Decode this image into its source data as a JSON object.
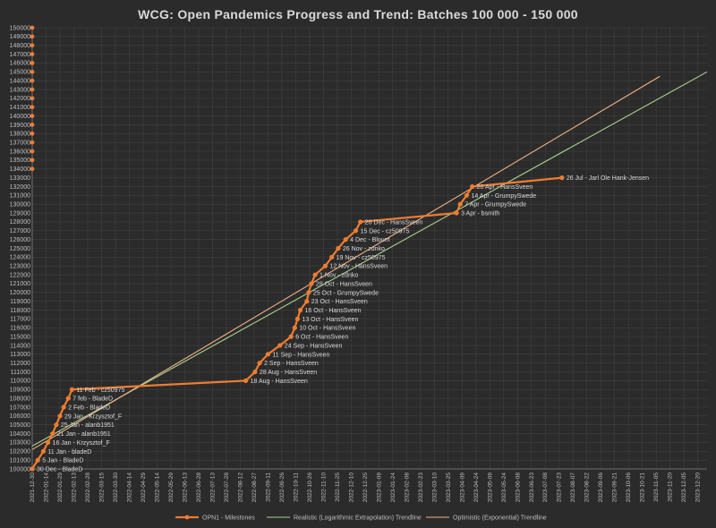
{
  "chart_data": {
    "type": "line",
    "title": "WCG: Open Pandemics Progress and Trend: Batches 100 000 - 150 000",
    "xlabel": "",
    "ylabel": "",
    "ylim": [
      100000,
      150000
    ],
    "y_ticks": [
      100000,
      101000,
      102000,
      103000,
      104000,
      105000,
      106000,
      107000,
      108000,
      109000,
      110000,
      111000,
      112000,
      113000,
      114000,
      115000,
      116000,
      117000,
      118000,
      119000,
      120000,
      121000,
      122000,
      123000,
      124000,
      125000,
      126000,
      127000,
      128000,
      129000,
      130000,
      131000,
      132000,
      133000,
      134000,
      135000,
      136000,
      137000,
      138000,
      139000,
      140000,
      141000,
      142000,
      143000,
      144000,
      145000,
      146000,
      147000,
      148000,
      149000,
      150000
    ],
    "x_ticks": [
      "2021-12-30",
      "2022-01-14",
      "2022-01-29",
      "2022-02-13",
      "2022-02-28",
      "2022-03-15",
      "2022-03-30",
      "2022-04-14",
      "2022-04-29",
      "2022-05-14",
      "2022-05-29",
      "2022-06-13",
      "2022-06-28",
      "2022-07-13",
      "2022-07-28",
      "2022-08-12",
      "2022-08-27",
      "2022-09-11",
      "2022-09-26",
      "2022-10-11",
      "2022-10-26",
      "2022-11-10",
      "2022-11-25",
      "2022-12-10",
      "2022-12-25",
      "2023-01-09",
      "2023-01-24",
      "2023-02-08",
      "2023-02-23",
      "2023-03-10",
      "2023-03-25",
      "2023-04-09",
      "2023-04-24",
      "2023-05-09",
      "2023-05-24",
      "2023-06-08",
      "2023-06-23",
      "2023-07-08",
      "2023-07-23",
      "2023-08-07",
      "2023-08-22",
      "2023-09-06",
      "2023-09-21",
      "2023-10-06",
      "2023-10-21",
      "2023-11-05",
      "2023-11-20",
      "2023-12-05",
      "2023-12-20"
    ],
    "grid": true,
    "legend_position": "bottom",
    "series": [
      {
        "name": "OPN1 - Milestones",
        "color": "#ed7d31",
        "points": [
          {
            "x": "2021-12-30",
            "y": 100000,
            "label": "30 Dec - BladeD"
          },
          {
            "x": "2022-01-05",
            "y": 101000,
            "label": "5 Jan - BladeD"
          },
          {
            "x": "2022-01-11",
            "y": 102000,
            "label": "11 Jan - bladeD"
          },
          {
            "x": "2022-01-16",
            "y": 103000,
            "label": "16 Jan - Krzysztof_F"
          },
          {
            "x": "2022-01-21",
            "y": 104000,
            "label": "21 Jan - alanb1951"
          },
          {
            "x": "2022-01-25",
            "y": 105000,
            "label": "25 Jan - alanb1951"
          },
          {
            "x": "2022-01-29",
            "y": 106000,
            "label": "29 Jan - Krzysztof_F"
          },
          {
            "x": "2022-02-02",
            "y": 107000,
            "label": "2 Feb - BladeD"
          },
          {
            "x": "2022-02-07",
            "y": 108000,
            "label": "7 feb - BladeD"
          },
          {
            "x": "2022-02-11",
            "y": 109000,
            "label": "11 Feb - cz50975"
          },
          {
            "x": "2022-08-18",
            "y": 110000,
            "label": "18 Aug - HansSveen"
          },
          {
            "x": "2022-08-28",
            "y": 111000,
            "label": "28 Aug - HansSveen"
          },
          {
            "x": "2022-09-02",
            "y": 112000,
            "label": "2 Sep - HansSveen"
          },
          {
            "x": "2022-09-11",
            "y": 113000,
            "label": "11 Sep - HansSveen"
          },
          {
            "x": "2022-09-24",
            "y": 114000,
            "label": "24 Sep - HansSveen"
          },
          {
            "x": "2022-10-06",
            "y": 115000,
            "label": "6 Oct - HansSveen"
          },
          {
            "x": "2022-10-10",
            "y": 116000,
            "label": "10 Oct - HansSveen"
          },
          {
            "x": "2022-10-13",
            "y": 117000,
            "label": "13 Oct - HansSveen"
          },
          {
            "x": "2022-10-16",
            "y": 118000,
            "label": "16 Oct - HansSveen"
          },
          {
            "x": "2022-10-23",
            "y": 119000,
            "label": "23 Oct - HansSveen"
          },
          {
            "x": "2022-10-25",
            "y": 120000,
            "label": "25 Oct - GrumpySwede"
          },
          {
            "x": "2022-10-28",
            "y": 121000,
            "label": "28 Oct - HansSveen"
          },
          {
            "x": "2022-11-01",
            "y": 122000,
            "label": "1 Nov - zdnko"
          },
          {
            "x": "2022-11-12",
            "y": 123000,
            "label": "12 Nov - HansSveen"
          },
          {
            "x": "2022-11-19",
            "y": 124000,
            "label": "19 Nov - cz50975"
          },
          {
            "x": "2022-11-26",
            "y": 125000,
            "label": "26 Nov - zdnko"
          },
          {
            "x": "2022-12-04",
            "y": 126000,
            "label": "4 Dec - Blount"
          },
          {
            "x": "2022-12-15",
            "y": 127000,
            "label": "15 Dec - cz50975"
          },
          {
            "x": "2022-12-20",
            "y": 128000,
            "label": "20 Dec - HansSveen"
          },
          {
            "x": "2023-04-03",
            "y": 129000,
            "label": "3 Apr - bsmith"
          },
          {
            "x": "2023-04-07",
            "y": 130000,
            "label": "7 Apr - GrumpySwede"
          },
          {
            "x": "2023-04-14",
            "y": 131000,
            "label": "14 Apr - GrumpySwede"
          },
          {
            "x": "2023-04-20",
            "y": 132000,
            "label": "20 Apr - HansSveen"
          },
          {
            "x": "2023-07-26",
            "y": 133000,
            "label": "26 Jul - Jarl Ole Hank-Jensen"
          }
        ]
      },
      {
        "name": "Realistic (Logarithmic Extrapolation) Trendline",
        "color": "#a9d18e",
        "points": [
          {
            "x": "2021-12-30",
            "y": 102600
          },
          {
            "x": "2023-12-30",
            "y": 145000
          }
        ]
      },
      {
        "name": "Optimistic (Exponential) Trendline",
        "color": "#f4b183",
        "points": [
          {
            "x": "2021-12-30",
            "y": 102200
          },
          {
            "x": "2023-11-09",
            "y": 144500
          }
        ]
      }
    ]
  }
}
